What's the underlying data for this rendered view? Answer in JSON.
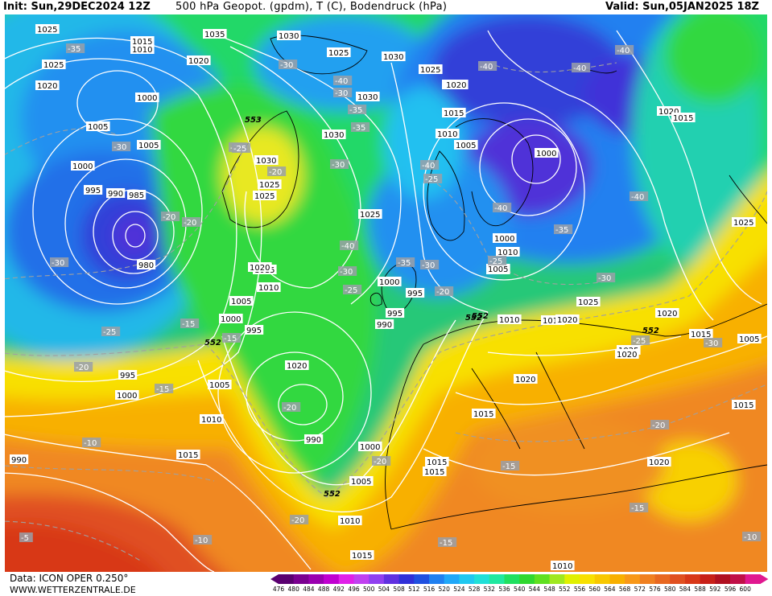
{
  "header": {
    "init": "Init: Sun,29DEC2024 12Z",
    "title": "500 hPa Geopot. (gpdm), T (C), Bodendruck (hPa)",
    "valid": "Valid: Sun,05JAN2025 18Z"
  },
  "footer": {
    "source": "Data: ICON OPER 0.250°",
    "url": "WWW.WETTERZENTRALE.DE"
  },
  "colorbar": {
    "ticks": [
      "476",
      "480",
      "484",
      "488",
      "492",
      "496",
      "500",
      "504",
      "508",
      "512",
      "516",
      "520",
      "524",
      "528",
      "532",
      "536",
      "540",
      "544",
      "548",
      "552",
      "556",
      "560",
      "564",
      "568",
      "572",
      "576",
      "580",
      "584",
      "588",
      "592",
      "596",
      "600"
    ],
    "colors": [
      "#5a0070",
      "#7a0090",
      "#9a00b0",
      "#c000d0",
      "#e020e8",
      "#c040f0",
      "#9040f0",
      "#6030e0",
      "#3030d8",
      "#2050e0",
      "#2080f0",
      "#20a8f8",
      "#20c8f0",
      "#20e0d8",
      "#20e8a0",
      "#20e060",
      "#30d830",
      "#60e020",
      "#a0e820",
      "#e0f000",
      "#f8e000",
      "#f8c800",
      "#f8b000",
      "#f89818",
      "#f08020",
      "#e86820",
      "#e05020",
      "#d83818",
      "#c82018",
      "#b01020",
      "#c01048",
      "#e01890"
    ]
  },
  "pressure_labels": [
    "1035",
    "1015",
    "1010",
    "1025",
    "1020",
    "1000",
    "1005",
    "1005",
    "1000",
    "995",
    "990",
    "985",
    "980",
    "1035",
    "1020",
    "1025",
    "1030",
    "1030",
    "1025",
    "1020",
    "1030",
    "1030",
    "1025",
    "1030",
    "1025",
    "1020",
    "1015",
    "1010",
    "1005",
    "1000",
    "995",
    "990",
    "995",
    "1000",
    "1005",
    "1010",
    "1010",
    "1005",
    "1010",
    "1015",
    "1020",
    "1025",
    "1020",
    "1015",
    "1015",
    "1020",
    "1025",
    "1020",
    "1000",
    "1005",
    "1010",
    "1015",
    "1020",
    "990",
    "995",
    "1000",
    "1005",
    "1010",
    "1015",
    "1020",
    "1025",
    "1010",
    "1015",
    "1005",
    "1000",
    "995",
    "990",
    "1015",
    "1000",
    "1005",
    "1010",
    "1015",
    "1020",
    "1025",
    "1020",
    "1015",
    "1025"
  ],
  "temperature_labels": [
    "-35",
    "-30",
    "-25",
    "-20",
    "-15",
    "-10",
    "-30",
    "-25",
    "-20",
    "-15",
    "-10",
    "-5",
    "-40",
    "-35",
    "-30",
    "-25",
    "-20",
    "-40",
    "-40",
    "-40",
    "-40",
    "-40",
    "-35",
    "-30",
    "-25",
    "-20",
    "-15",
    "-40",
    "-30",
    "-35",
    "-30",
    "-40",
    "-35",
    "-30",
    "-25",
    "-20",
    "-30",
    "-25",
    "-20",
    "-20",
    "-20",
    "-15",
    "-15",
    "-10",
    "-15",
    "-20",
    "-25",
    "-30"
  ],
  "geopot_labels": [
    "553",
    "552",
    "552",
    "552",
    "552",
    "552"
  ]
}
